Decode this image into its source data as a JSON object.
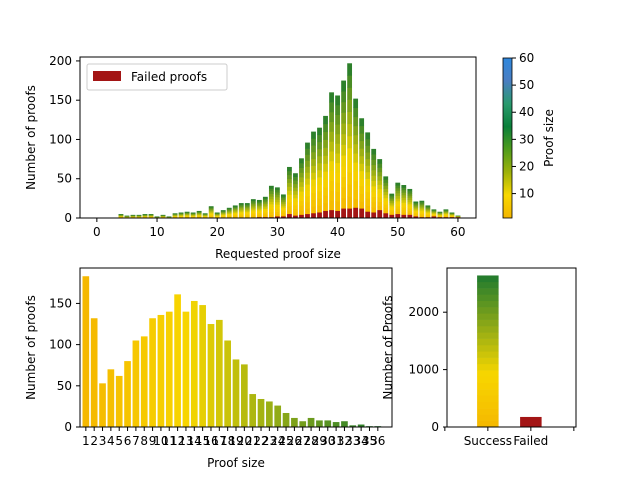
{
  "colors": {
    "failed": "#a31515",
    "success_low": "#f5b800",
    "success_mid": "#f7d600",
    "success_high": "#1f7a2e",
    "cbar_stops": [
      "#f3b500",
      "#f8d800",
      "#9eb20b",
      "#4f9c1c",
      "#0a7f3a",
      "#2a9a6e",
      "#4a7ec2",
      "#2f88dd"
    ]
  },
  "chart_data": [
    {
      "id": "requested",
      "type": "bar",
      "stacked": true,
      "xlabel": "Requested proof size",
      "ylabel": "Number of proofs",
      "xlim": [
        -2.8,
        63.0
      ],
      "ylim": [
        0,
        205
      ],
      "xticks": [
        0,
        10,
        20,
        30,
        40,
        50,
        60
      ],
      "yticks": [
        0,
        50,
        100,
        150,
        200
      ],
      "legend": {
        "position": "top-left",
        "entries": [
          "Failed proofs"
        ]
      },
      "x": [
        4,
        5,
        6,
        7,
        8,
        9,
        10,
        11,
        12,
        13,
        14,
        15,
        16,
        17,
        18,
        19,
        20,
        21,
        22,
        23,
        24,
        25,
        26,
        27,
        28,
        29,
        30,
        31,
        32,
        33,
        34,
        35,
        36,
        37,
        38,
        39,
        40,
        41,
        42,
        43,
        44,
        45,
        46,
        47,
        48,
        49,
        50,
        51,
        52,
        53,
        54,
        55,
        56,
        57,
        58,
        59,
        60
      ],
      "total": [
        5,
        3,
        4,
        4,
        5,
        5,
        2,
        4,
        2,
        6,
        7,
        8,
        7,
        9,
        6,
        15,
        7,
        10,
        13,
        16,
        19,
        19,
        24,
        23,
        27,
        41,
        39,
        30,
        65,
        57,
        76,
        96,
        110,
        115,
        130,
        160,
        156,
        175,
        197,
        152,
        127,
        109,
        88,
        75,
        53,
        31,
        45,
        42,
        37,
        21,
        22,
        16,
        11,
        8,
        11,
        7,
        3
      ],
      "failed": [
        0,
        0,
        0,
        0,
        0,
        0,
        0,
        0,
        0,
        0,
        0,
        0,
        0,
        0,
        0,
        0,
        0,
        0,
        0,
        0,
        0,
        0,
        0,
        1,
        1,
        1,
        2,
        2,
        5,
        3,
        4,
        5,
        6,
        7,
        9,
        10,
        9,
        12,
        12,
        13,
        12,
        8,
        7,
        10,
        6,
        4,
        5,
        4,
        4,
        2,
        1,
        1,
        2,
        1,
        1,
        1,
        1
      ]
    },
    {
      "id": "colorbar",
      "type": "heatmap",
      "ylabel": "Proof size",
      "range": [
        1,
        60
      ],
      "ticks": [
        10,
        20,
        30,
        40,
        50,
        60
      ]
    },
    {
      "id": "proofsize",
      "type": "bar",
      "xlabel": "Proof size",
      "ylabel": "Number of proofs",
      "xlim": [
        -0.7,
        36.7
      ],
      "ylim": [
        0,
        193
      ],
      "yticks": [
        0,
        50,
        100,
        150
      ],
      "categories": [
        "1",
        "2",
        "3",
        "4",
        "5",
        "6",
        "7",
        "8",
        "9",
        "10",
        "11",
        "12",
        "13",
        "14",
        "15",
        "16",
        "17",
        "18",
        "19",
        "20",
        "21",
        "22",
        "23",
        "24",
        "25",
        "26",
        "27",
        "28",
        "29",
        "30",
        "31",
        "32",
        "33",
        "34",
        "35",
        "36"
      ],
      "values": [
        183,
        132,
        53,
        70,
        62,
        80,
        105,
        110,
        132,
        136,
        140,
        161,
        140,
        153,
        148,
        125,
        130,
        105,
        82,
        76,
        40,
        34,
        31,
        26,
        17,
        11,
        7,
        11,
        8,
        8,
        6,
        7,
        2,
        3,
        1,
        1
      ]
    },
    {
      "id": "outcome",
      "type": "bar",
      "ylabel": "Number of Proofs",
      "xlim": [
        -0.95,
        2.05
      ],
      "ylim": [
        0,
        2770
      ],
      "yticks": [
        0,
        1000,
        2000
      ],
      "categories": [
        "Success",
        "Failed"
      ],
      "values": [
        2640,
        175
      ]
    }
  ]
}
